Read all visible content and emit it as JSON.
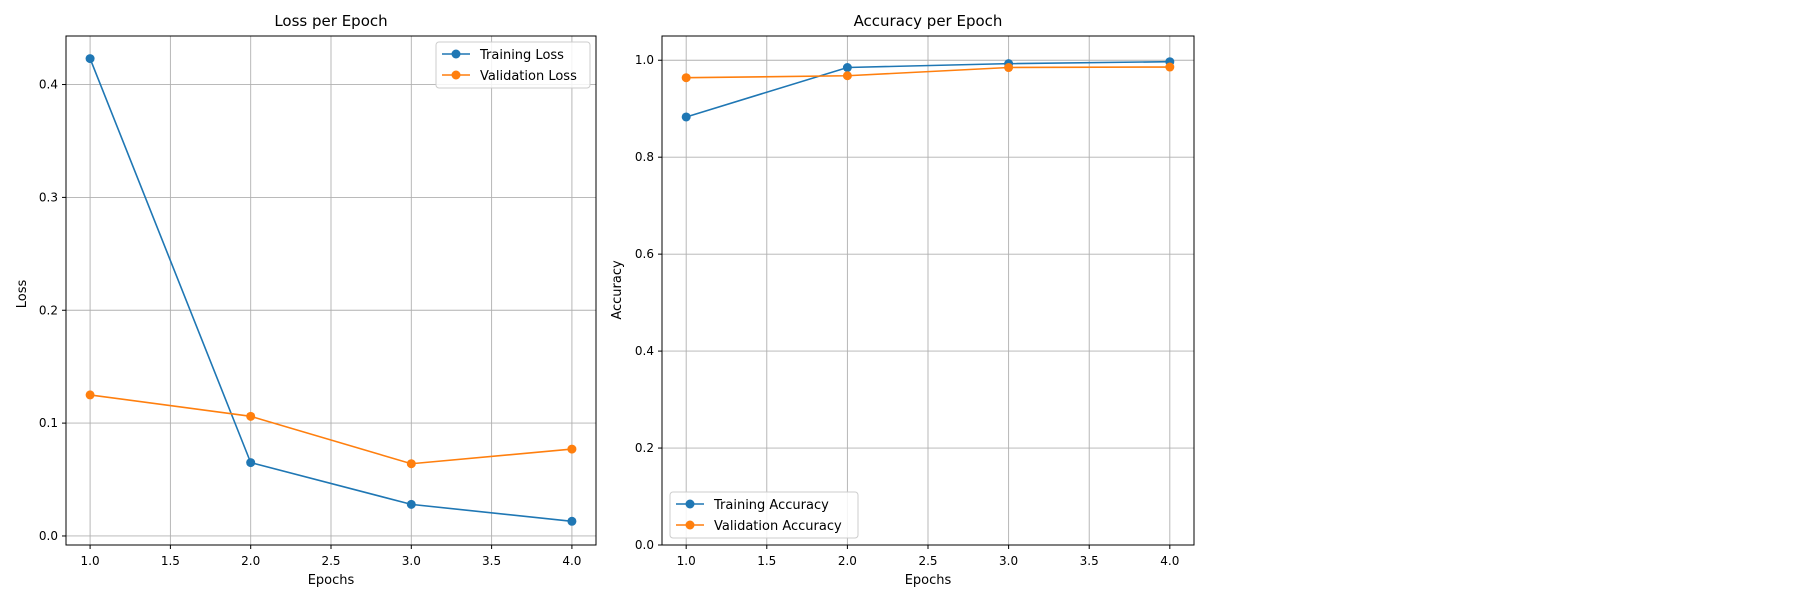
{
  "chart_data": [
    {
      "type": "line",
      "title": "Loss per Epoch",
      "xlabel": "Epochs",
      "ylabel": "Loss",
      "x": [
        1,
        2,
        3,
        4
      ],
      "xlim": [
        0.85,
        4.15
      ],
      "ylim": [
        -0.008,
        0.443
      ],
      "xticks": [
        1.0,
        1.5,
        2.0,
        2.5,
        3.0,
        3.5,
        4.0
      ],
      "xtick_labels": [
        "1.0",
        "1.5",
        "2.0",
        "2.5",
        "3.0",
        "3.5",
        "4.0"
      ],
      "yticks": [
        0.0,
        0.1,
        0.2,
        0.3,
        0.4
      ],
      "ytick_labels": [
        "0.0",
        "0.1",
        "0.2",
        "0.3",
        "0.4"
      ],
      "grid": true,
      "legend_position": "upper right",
      "series": [
        {
          "name": "Training Loss",
          "color": "#1f77b4",
          "marker": "circle",
          "values": [
            0.423,
            0.065,
            0.028,
            0.013
          ]
        },
        {
          "name": "Validation Loss",
          "color": "#ff7f0e",
          "marker": "circle",
          "values": [
            0.125,
            0.106,
            0.064,
            0.077
          ]
        }
      ]
    },
    {
      "type": "line",
      "title": "Accuracy per Epoch",
      "xlabel": "Epochs",
      "ylabel": "Accuracy",
      "x": [
        1,
        2,
        3,
        4
      ],
      "xlim": [
        0.85,
        4.15
      ],
      "ylim": [
        0.0,
        1.05
      ],
      "xticks": [
        1.0,
        1.5,
        2.0,
        2.5,
        3.0,
        3.5,
        4.0
      ],
      "xtick_labels": [
        "1.0",
        "1.5",
        "2.0",
        "2.5",
        "3.0",
        "3.5",
        "4.0"
      ],
      "yticks": [
        0.0,
        0.2,
        0.4,
        0.6,
        0.8,
        1.0
      ],
      "ytick_labels": [
        "0.0",
        "0.2",
        "0.4",
        "0.6",
        "0.8",
        "1.0"
      ],
      "grid": true,
      "legend_position": "lower left",
      "series": [
        {
          "name": "Training Accuracy",
          "color": "#1f77b4",
          "marker": "circle",
          "values": [
            0.883,
            0.985,
            0.993,
            0.997
          ]
        },
        {
          "name": "Validation Accuracy",
          "color": "#ff7f0e",
          "marker": "circle",
          "values": [
            0.964,
            0.968,
            0.985,
            0.986
          ]
        }
      ]
    }
  ]
}
